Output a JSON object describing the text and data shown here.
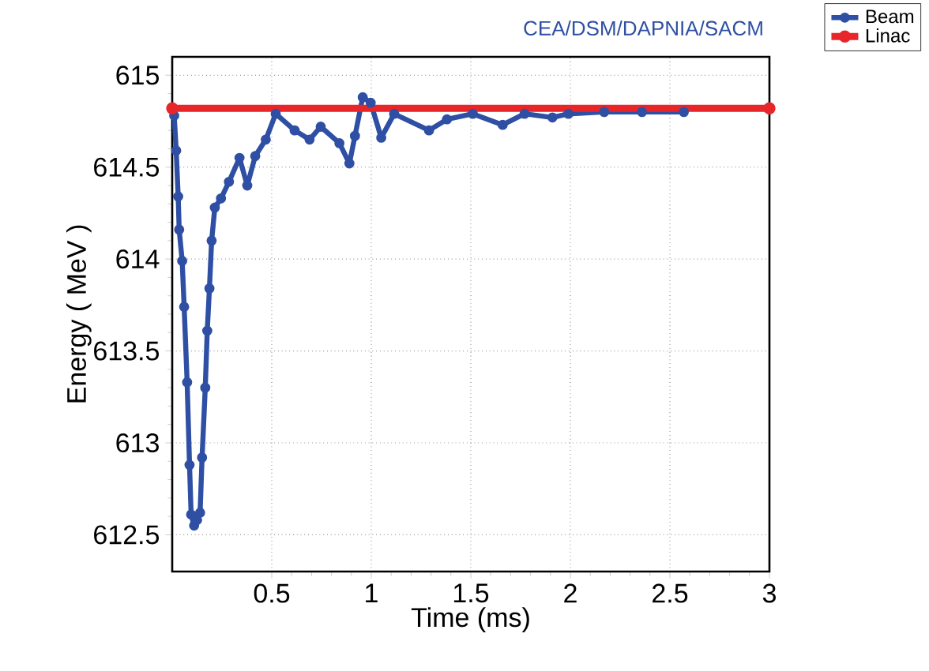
{
  "chart_data": {
    "type": "line",
    "title": "CEA/DSM/DAPNIA/SACM",
    "xlabel": "Time (ms)",
    "ylabel": "Energy ( MeV )",
    "xlim": [
      0,
      3
    ],
    "ylim": [
      612.3,
      615.1
    ],
    "xticks": [
      0.5,
      1,
      1.5,
      2,
      2.5,
      3
    ],
    "yticks": [
      612.5,
      613,
      613.5,
      614,
      614.5,
      615
    ],
    "grid": true,
    "legend": "top right",
    "marker": "circle",
    "line_style": "solid",
    "series": [
      {
        "name": "Beam",
        "color": "#2e4fa3",
        "x": [
          0.01,
          0.02,
          0.03,
          0.035,
          0.05,
          0.06,
          0.075,
          0.087,
          0.095,
          0.11,
          0.125,
          0.14,
          0.15,
          0.166,
          0.176,
          0.187,
          0.198,
          0.214,
          0.245,
          0.285,
          0.338,
          0.377,
          0.417,
          0.47,
          0.52,
          0.615,
          0.69,
          0.746,
          0.84,
          0.89,
          0.918,
          0.957,
          0.997,
          1.05,
          1.115,
          1.29,
          1.38,
          1.51,
          1.66,
          1.77,
          1.91,
          1.99,
          2.17,
          2.36,
          2.57
        ],
        "values": [
          614.78,
          614.59,
          614.34,
          614.16,
          613.99,
          613.74,
          613.33,
          612.88,
          612.61,
          612.55,
          612.58,
          612.62,
          612.92,
          613.3,
          613.61,
          613.84,
          614.1,
          614.28,
          614.33,
          614.42,
          614.55,
          614.4,
          614.56,
          614.65,
          614.79,
          614.7,
          614.65,
          614.72,
          614.63,
          614.52,
          614.67,
          614.88,
          614.85,
          614.66,
          614.79,
          614.7,
          614.76,
          614.79,
          614.73,
          614.79,
          614.77,
          614.79,
          614.8,
          614.8,
          614.8
        ]
      },
      {
        "name": "Linac",
        "color": "#e8262a",
        "x": [
          0,
          3
        ],
        "values": [
          614.82,
          614.82
        ]
      }
    ]
  }
}
